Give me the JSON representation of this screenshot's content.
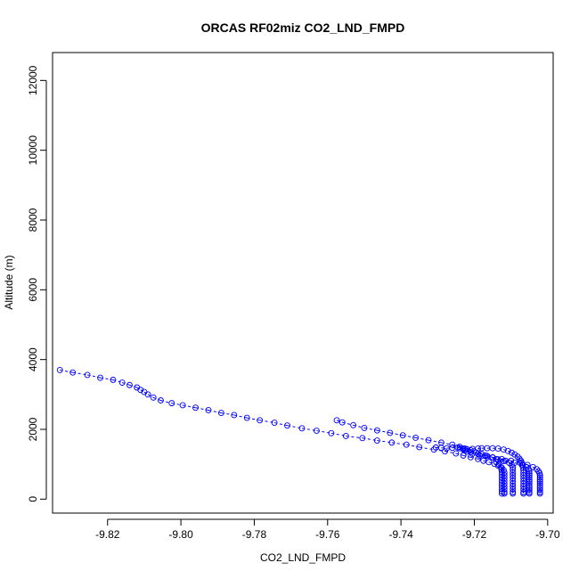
{
  "chart_data": {
    "type": "scatter",
    "title": "ORCAS RF02miz CO2_LND_FMPD",
    "xlabel": "CO2_LND_FMPD",
    "ylabel": "Altitude (m)",
    "xlim": [
      -9.835,
      -9.6985
    ],
    "ylim": [
      -400,
      12800
    ],
    "xticks": [
      -9.82,
      -9.8,
      -9.78,
      -9.76,
      -9.74,
      -9.72,
      -9.7
    ],
    "xtick_labels": [
      "-9.82",
      "-9.80",
      "-9.78",
      "-9.76",
      "-9.74",
      "-9.72",
      "-9.70"
    ],
    "yticks": [
      0,
      2000,
      4000,
      6000,
      8000,
      10000,
      12000
    ],
    "ytick_labels": [
      "0",
      "2000",
      "4000",
      "6000",
      "8000",
      "10000",
      "12000"
    ],
    "grid": false,
    "marker": "open-circle",
    "line_style": "dashed",
    "color": "#0000ff",
    "series": [
      {
        "points": [
          [
            -9.833,
            3700
          ],
          [
            -9.8295,
            3630
          ],
          [
            -9.8255,
            3560
          ],
          [
            -9.822,
            3480
          ],
          [
            -9.8185,
            3420
          ],
          [
            -9.816,
            3340
          ],
          [
            -9.814,
            3270
          ],
          [
            -9.812,
            3200
          ],
          [
            -9.811,
            3130
          ],
          [
            -9.81,
            3070
          ],
          [
            -9.809,
            3000
          ],
          [
            -9.8075,
            2910
          ],
          [
            -9.8055,
            2830
          ],
          [
            -9.8025,
            2750
          ],
          [
            -9.7995,
            2690
          ],
          [
            -9.796,
            2620
          ],
          [
            -9.7925,
            2550
          ],
          [
            -9.789,
            2470
          ],
          [
            -9.7855,
            2410
          ],
          [
            -9.782,
            2330
          ],
          [
            -9.7785,
            2260
          ],
          [
            -9.7745,
            2190
          ],
          [
            -9.771,
            2110
          ],
          [
            -9.767,
            2030
          ],
          [
            -9.763,
            1960
          ],
          [
            -9.759,
            1890
          ],
          [
            -9.755,
            1810
          ],
          [
            -9.7505,
            1750
          ],
          [
            -9.7465,
            1680
          ],
          [
            -9.7425,
            1620
          ],
          [
            -9.7385,
            1560
          ],
          [
            -9.735,
            1490
          ],
          [
            -9.731,
            1420
          ],
          [
            -9.728,
            1370
          ],
          [
            -9.725,
            1310
          ],
          [
            -9.723,
            1250
          ],
          [
            -9.721,
            1200
          ],
          [
            -9.719,
            1150
          ],
          [
            -9.7175,
            1100
          ],
          [
            -9.716,
            1060
          ],
          [
            -9.7145,
            1010
          ],
          [
            -9.7135,
            960
          ],
          [
            -9.7125,
            900
          ],
          [
            -9.712,
            830
          ],
          [
            -9.7118,
            760
          ],
          [
            -9.7118,
            680
          ],
          [
            -9.7118,
            600
          ],
          [
            -9.7118,
            520
          ],
          [
            -9.7118,
            440
          ],
          [
            -9.7118,
            360
          ],
          [
            -9.7118,
            280
          ],
          [
            -9.7118,
            200
          ],
          [
            -9.7118,
            160
          ]
        ]
      },
      {
        "points": [
          [
            -9.7575,
            2260
          ],
          [
            -9.756,
            2200
          ],
          [
            -9.753,
            2120
          ],
          [
            -9.75,
            2040
          ],
          [
            -9.7465,
            1970
          ],
          [
            -9.743,
            1900
          ],
          [
            -9.7395,
            1830
          ],
          [
            -9.736,
            1760
          ],
          [
            -9.7325,
            1690
          ],
          [
            -9.729,
            1620
          ],
          [
            -9.726,
            1560
          ],
          [
            -9.724,
            1500
          ],
          [
            -9.7225,
            1450
          ],
          [
            -9.721,
            1400
          ],
          [
            -9.7195,
            1340
          ],
          [
            -9.718,
            1290
          ],
          [
            -9.7165,
            1240
          ],
          [
            -9.715,
            1190
          ],
          [
            -9.7135,
            1140
          ],
          [
            -9.712,
            1090
          ],
          [
            -9.7105,
            1040
          ],
          [
            -9.7098,
            980
          ],
          [
            -9.7095,
            910
          ],
          [
            -9.7095,
            840
          ],
          [
            -9.7095,
            760
          ],
          [
            -9.7095,
            680
          ],
          [
            -9.7095,
            600
          ],
          [
            -9.7095,
            520
          ],
          [
            -9.7095,
            440
          ],
          [
            -9.7095,
            360
          ],
          [
            -9.7095,
            280
          ],
          [
            -9.7095,
            200
          ],
          [
            -9.7095,
            160
          ]
        ]
      },
      {
        "points": [
          [
            -9.7305,
            1480
          ],
          [
            -9.729,
            1470
          ],
          [
            -9.7275,
            1460
          ],
          [
            -9.726,
            1470
          ],
          [
            -9.7245,
            1480
          ],
          [
            -9.723,
            1450
          ],
          [
            -9.722,
            1430
          ],
          [
            -9.7205,
            1440
          ],
          [
            -9.719,
            1450
          ],
          [
            -9.718,
            1460
          ],
          [
            -9.7165,
            1460
          ],
          [
            -9.715,
            1460
          ],
          [
            -9.7135,
            1450
          ],
          [
            -9.712,
            1420
          ],
          [
            -9.7108,
            1380
          ],
          [
            -9.7098,
            1330
          ],
          [
            -9.709,
            1280
          ],
          [
            -9.7082,
            1220
          ],
          [
            -9.7077,
            1160
          ],
          [
            -9.7073,
            1100
          ],
          [
            -9.707,
            1040
          ],
          [
            -9.7068,
            970
          ],
          [
            -9.7067,
            900
          ],
          [
            -9.7066,
            830
          ],
          [
            -9.7066,
            760
          ],
          [
            -9.7066,
            680
          ],
          [
            -9.7066,
            600
          ],
          [
            -9.7066,
            520
          ],
          [
            -9.7066,
            440
          ],
          [
            -9.7066,
            360
          ],
          [
            -9.7066,
            280
          ],
          [
            -9.7066,
            200
          ],
          [
            -9.7066,
            160
          ]
        ]
      },
      {
        "points": [
          [
            -9.724,
            1460
          ],
          [
            -9.7225,
            1400
          ],
          [
            -9.721,
            1350
          ],
          [
            -9.719,
            1300
          ],
          [
            -9.717,
            1250
          ],
          [
            -9.715,
            1200
          ],
          [
            -9.7125,
            1150
          ],
          [
            -9.71,
            1100
          ],
          [
            -9.7075,
            1040
          ],
          [
            -9.7055,
            980
          ],
          [
            -9.704,
            920
          ],
          [
            -9.703,
            860
          ],
          [
            -9.7025,
            800
          ],
          [
            -9.7022,
            740
          ],
          [
            -9.7021,
            680
          ],
          [
            -9.7021,
            620
          ],
          [
            -9.7021,
            560
          ],
          [
            -9.7021,
            500
          ],
          [
            -9.7021,
            440
          ],
          [
            -9.7021,
            380
          ],
          [
            -9.7021,
            320
          ],
          [
            -9.7021,
            260
          ],
          [
            -9.7021,
            200
          ],
          [
            -9.7021,
            160
          ]
        ]
      },
      {
        "points": [
          [
            -9.723,
            1420
          ],
          [
            -9.722,
            1360
          ],
          [
            -9.7205,
            1300
          ],
          [
            -9.7185,
            1250
          ],
          [
            -9.7165,
            1200
          ],
          [
            -9.714,
            1150
          ],
          [
            -9.7115,
            1100
          ],
          [
            -9.709,
            1040
          ],
          [
            -9.707,
            980
          ],
          [
            -9.7058,
            920
          ],
          [
            -9.7052,
            860
          ],
          [
            -9.705,
            800
          ],
          [
            -9.705,
            740
          ],
          [
            -9.705,
            680
          ],
          [
            -9.705,
            620
          ],
          [
            -9.705,
            560
          ],
          [
            -9.705,
            500
          ],
          [
            -9.705,
            440
          ],
          [
            -9.705,
            380
          ],
          [
            -9.705,
            320
          ],
          [
            -9.705,
            260
          ],
          [
            -9.705,
            200
          ],
          [
            -9.705,
            160
          ]
        ]
      },
      {
        "points": [
          [
            -9.714,
            1060
          ],
          [
            -9.7133,
            990
          ],
          [
            -9.7128,
            920
          ],
          [
            -9.7126,
            850
          ],
          [
            -9.7125,
            780
          ],
          [
            -9.7125,
            700
          ],
          [
            -9.7125,
            620
          ],
          [
            -9.7125,
            540
          ],
          [
            -9.7125,
            460
          ],
          [
            -9.7125,
            380
          ],
          [
            -9.7125,
            300
          ],
          [
            -9.7125,
            220
          ],
          [
            -9.7125,
            160
          ]
        ]
      }
    ]
  }
}
